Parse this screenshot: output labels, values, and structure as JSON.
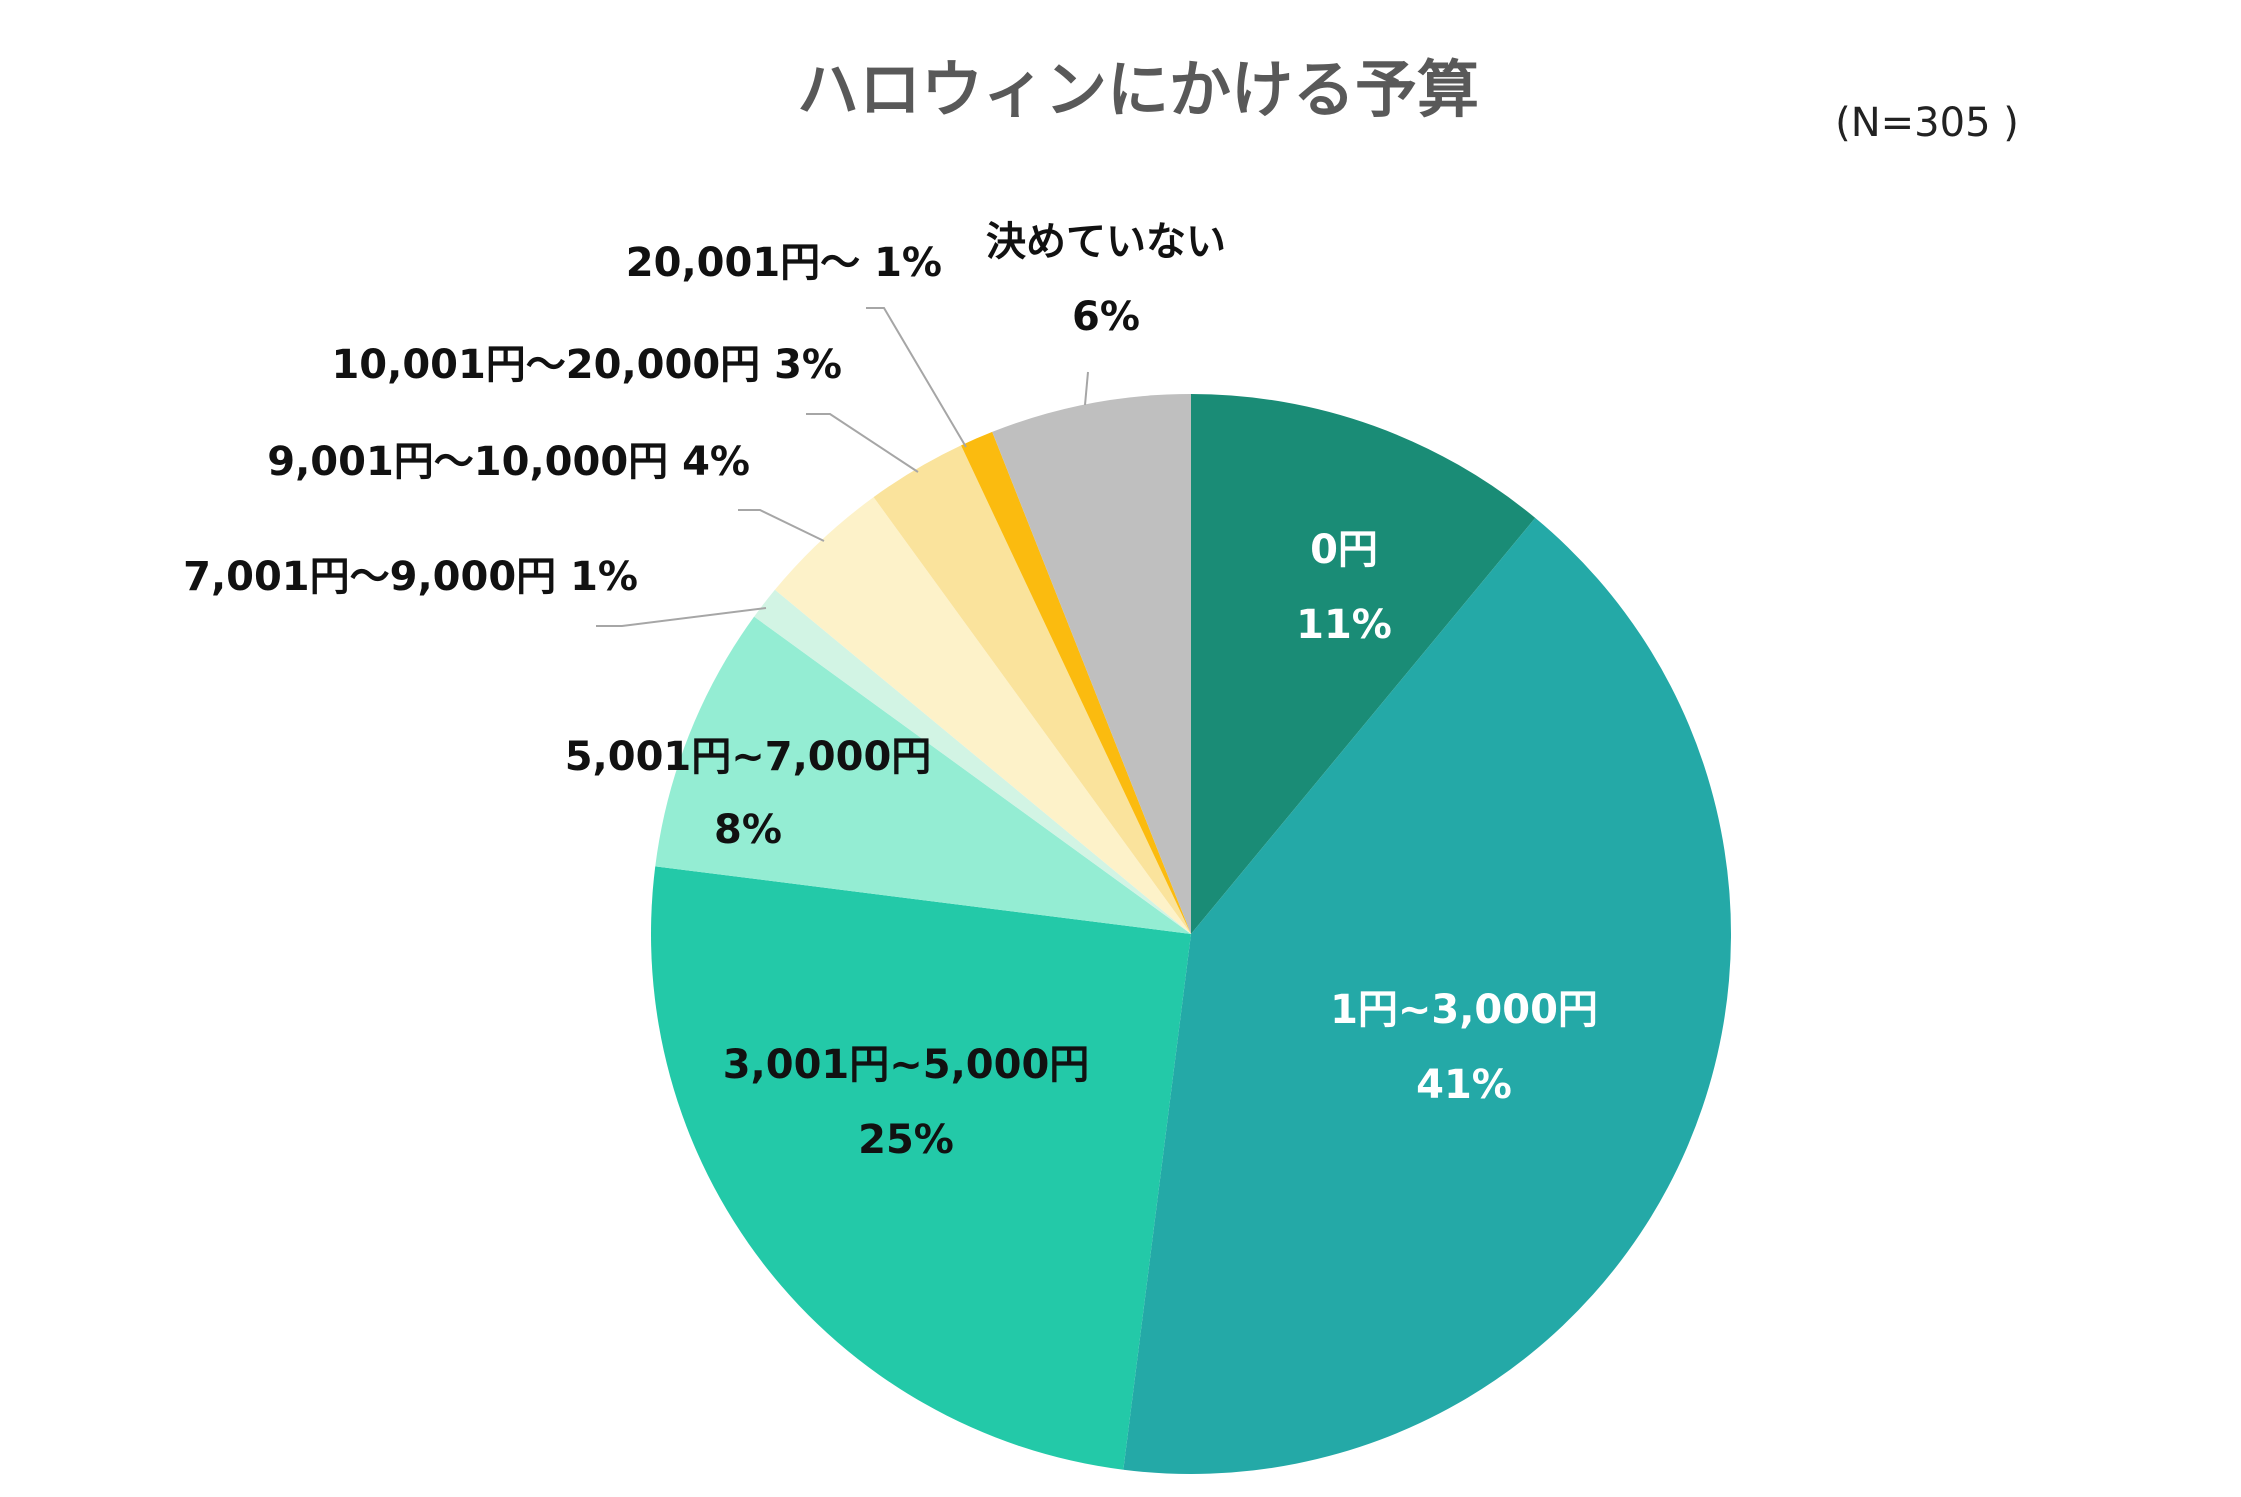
{
  "chart_data": {
    "type": "pie",
    "title": "ハロウィンにかける予算",
    "sample_note": "(N=305 )",
    "start_angle_deg": 0,
    "direction": "clockwise",
    "slices": [
      {
        "label": "0円",
        "value": 11,
        "value_label": "11%",
        "color": "#1a8c76"
      },
      {
        "label": "1円~3,000円",
        "value": 41,
        "value_label": "41%",
        "color": "#24a9a7"
      },
      {
        "label": "3,001円~5,000円",
        "value": 25,
        "value_label": "25%",
        "color": "#23c9a8"
      },
      {
        "label": "5,001円~7,000円",
        "value": 8,
        "value_label": "8%",
        "color": "#94edd3"
      },
      {
        "label": "7,001円～9,000円",
        "value": 1,
        "value_label": "1%",
        "color": "#d2f4e4"
      },
      {
        "label": "9,001円～10,000円",
        "value": 4,
        "value_label": "4%",
        "color": "#fdf2c9"
      },
      {
        "label": "10,001円～20,000円",
        "value": 3,
        "value_label": "3%",
        "color": "#fae39c"
      },
      {
        "label": "20,001円～",
        "value": 1,
        "value_label": "1%",
        "color": "#fbbb0f"
      },
      {
        "label": "決めていない",
        "value": 6,
        "value_label": "6%",
        "color": "#bfbfbf"
      }
    ]
  }
}
